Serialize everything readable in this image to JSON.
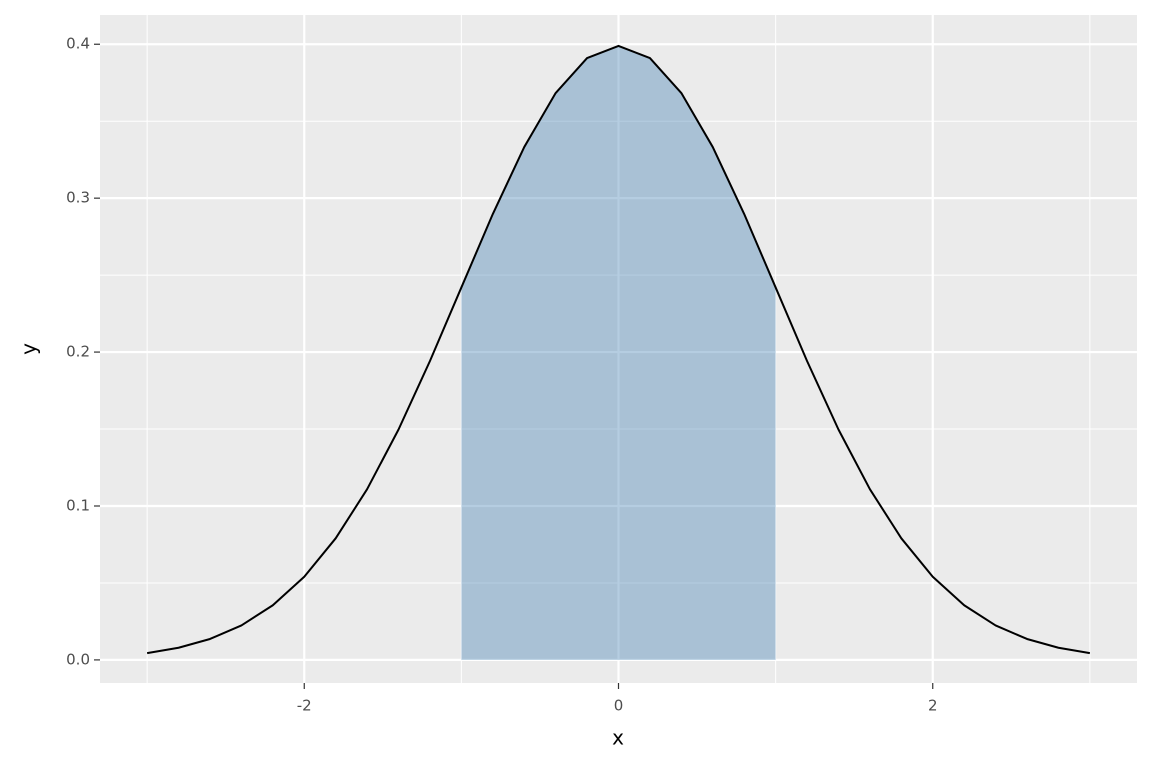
{
  "chart_data": {
    "type": "line",
    "xlabel": "x",
    "ylabel": "y",
    "x": [
      -3,
      -2.8,
      -2.6,
      -2.4,
      -2.2,
      -2,
      -1.8,
      -1.6,
      -1.4,
      -1.2,
      -1,
      -0.8,
      -0.6,
      -0.4,
      -0.2,
      0,
      0.2,
      0.4,
      0.6,
      0.8,
      1,
      1.2,
      1.4,
      1.6,
      1.8,
      2,
      2.2,
      2.4,
      2.6,
      2.8,
      3
    ],
    "series": [
      {
        "color": "#000000",
        "values": [
          0.0044,
          0.0079,
          0.0136,
          0.0224,
          0.0355,
          0.054,
          0.079,
          0.1109,
          0.1497,
          0.1942,
          0.242,
          0.2897,
          0.3332,
          0.3683,
          0.391,
          0.3989,
          0.391,
          0.3683,
          0.3332,
          0.2897,
          0.242,
          0.1942,
          0.1497,
          0.1109,
          0.079,
          0.054,
          0.0355,
          0.0224,
          0.0136,
          0.0079,
          0.0044
        ]
      }
    ],
    "shaded": {
      "color": "#4682b4",
      "alpha": 0.4,
      "x": [
        -1,
        -0.8,
        -0.6,
        -0.4,
        -0.2,
        0,
        0.2,
        0.4,
        0.6,
        0.8,
        1
      ],
      "values": [
        0.242,
        0.2897,
        0.3332,
        0.3683,
        0.391,
        0.3989,
        0.391,
        0.3683,
        0.3332,
        0.2897,
        0.242
      ]
    },
    "xlim": [
      -3.3,
      3.3
    ],
    "ylim": [
      -0.015,
      0.419
    ],
    "xticks": [
      -2,
      0,
      2
    ],
    "yticks": [
      {
        "value": 0,
        "label": "0.0"
      },
      0.1,
      0.2,
      0.3,
      0.4
    ],
    "xminorticks": [
      -3,
      -1,
      1,
      3
    ],
    "yminorticks": [
      0.05,
      0.15,
      0.25,
      0.35
    ],
    "grid": true,
    "panel_color": "#ebebeb"
  }
}
